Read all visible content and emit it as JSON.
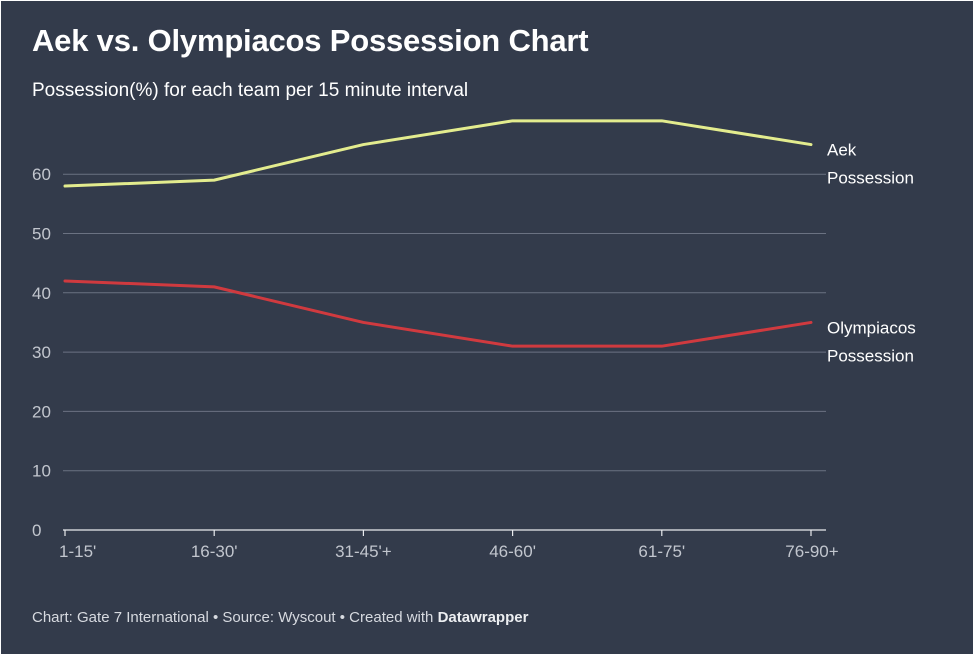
{
  "header": {
    "title": "Aek vs. Olympiacos Possession Chart",
    "subtitle": "Possession(%) for each team per 15 minute interval"
  },
  "footer": {
    "prefix": "Chart: Gate 7 International • Source: Wyscout • Created with ",
    "brand": "Datawrapper"
  },
  "colors": {
    "background": "#333b4b",
    "grid": "#6b7282",
    "axis": "#e9ebee",
    "tick_text": "#c2c6ce",
    "label_text": "#ffffff",
    "aek": "#e3ec8e",
    "olympiacos": "#d03a3f"
  },
  "chart_data": {
    "type": "line",
    "title": "Aek vs. Olympiacos Possession Chart",
    "subtitle": "Possession(%) for each team per 15 minute interval",
    "categories": [
      "1-15'",
      "16-30'",
      "31-45'+",
      "46-60'",
      "61-75'",
      "76-90+"
    ],
    "yticks": [
      0,
      10,
      20,
      30,
      40,
      50,
      60
    ],
    "ylim": [
      0,
      70
    ],
    "grid": true,
    "legend": "direct labels at line ends",
    "series": [
      {
        "name": "Aek Possession",
        "label_lines": [
          "Aek",
          "Possession"
        ],
        "color": "#e3ec8e",
        "values": [
          58,
          59,
          65,
          69,
          69,
          65
        ]
      },
      {
        "name": "Olympiacos Possession",
        "label_lines": [
          "Olympiacos",
          "Possession"
        ],
        "color": "#d03a3f",
        "values": [
          42,
          41,
          35,
          31,
          31,
          35
        ]
      }
    ]
  }
}
